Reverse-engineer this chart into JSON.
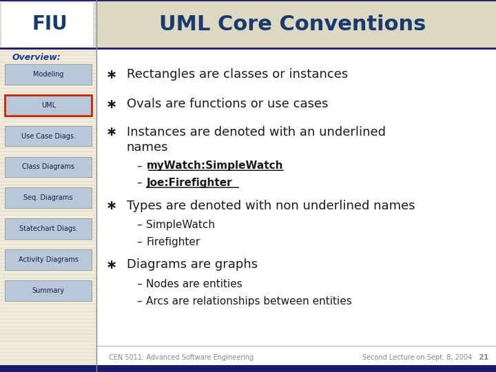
{
  "title": "UML Core Conventions",
  "title_color": "#1a3a6b",
  "header_bg": "#d4d0c8",
  "header_stripe_color": "#e8e4d8",
  "sidebar_bg": "#e8e4d0",
  "sidebar_stripe_color": "#f0ece0",
  "main_bg": "#ffffff",
  "overview_label": "Overview:",
  "overview_color": "#1a3a8b",
  "nav_items": [
    "Modeling",
    "UML",
    "Use Case Diags.",
    "Class Diagrams",
    "Seq. Diagrams",
    "Statechart Diags.",
    "Activity Diagrams",
    "Summary"
  ],
  "nav_active": "UML",
  "nav_active_border": "#cc2200",
  "nav_bg": "#b8c8d8",
  "nav_text_color": "#1a1a4a",
  "bullet_symbol": "∗",
  "bullet_color": "#1a1a1a",
  "bullet1": "Rectangles are classes or instances",
  "bullet2": "Ovals are functions or use cases",
  "bullet3": "Instances are denoted with an underlined",
  "bullet3b": "names",
  "sub3a": "myWatch:SimpleWatch",
  "sub3b": "Joe:Firefighter",
  "bullet4": "Types are denoted with non underlined names",
  "sub4a": "SimpleWatch",
  "sub4b": "Firefighter",
  "bullet5": "Diagrams are graphs",
  "sub5a": "Nodes are entities",
  "sub5b": "Arcs are relationships between entities",
  "footer_left": "CEN 5011: Advanced Software Engineering",
  "footer_right": "Second Lecture on Sept. 8, 2004",
  "footer_num": "21",
  "footer_color": "#888888",
  "footer_bg": "#1a1a6b",
  "main_text_color": "#1a1a1a",
  "main_text_size": 14,
  "sub_text_size": 12
}
